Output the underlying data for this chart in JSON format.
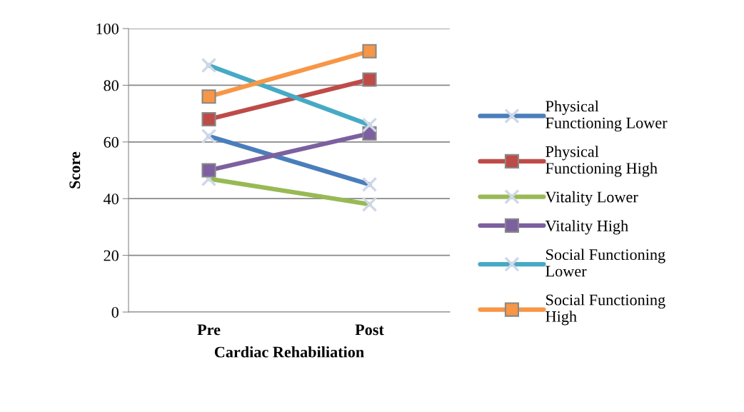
{
  "chart_data": {
    "type": "line",
    "xlabel": "Cardiac Rehabiliation",
    "ylabel": "Score",
    "categories": [
      "Pre",
      "Post"
    ],
    "series": [
      {
        "name": "Physical Functioning Lower",
        "color": "#4a7ebb",
        "marker": "cross",
        "values": [
          62,
          45
        ]
      },
      {
        "name": "Physical Functioning High",
        "color": "#be4b48",
        "marker": "square",
        "values": [
          68,
          82
        ]
      },
      {
        "name": "Vitality Lower",
        "color": "#98b954",
        "marker": "cross",
        "values": [
          47,
          38
        ]
      },
      {
        "name": "Vitality High",
        "color": "#7d60a0",
        "marker": "square",
        "values": [
          50,
          63
        ]
      },
      {
        "name": "Social Functioning Lower",
        "color": "#46aac5",
        "marker": "cross",
        "values": [
          87,
          66
        ]
      },
      {
        "name": "Social Functioning High",
        "color": "#f79646",
        "marker": "square",
        "values": [
          76,
          92
        ]
      }
    ],
    "ylim": [
      0,
      100
    ],
    "yticks": [
      0,
      20,
      40,
      60,
      80,
      100
    ],
    "grid": "y",
    "legend": "right"
  }
}
